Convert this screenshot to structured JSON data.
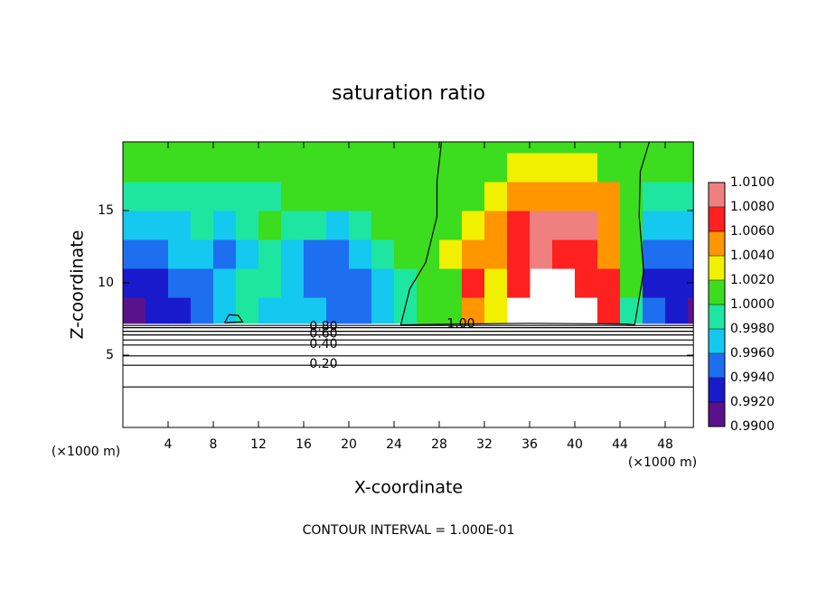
{
  "chart_data": {
    "type": "contour",
    "title": "saturation ratio",
    "x_label": "X-coordinate",
    "y_label": "Z-coordinate",
    "unit_label": "(×1000 m)",
    "footer": "CONTOUR INTERVAL = 1.000E-01",
    "xlim": [
      0,
      50.5
    ],
    "ylim": [
      0,
      19.75
    ],
    "xticks": [
      4,
      8,
      12,
      16,
      20,
      24,
      28,
      32,
      36,
      40,
      44,
      48
    ],
    "yticks": [
      5,
      10,
      15
    ],
    "x_edges": [
      0,
      2,
      4,
      6,
      8,
      10,
      12,
      14,
      16,
      18,
      20,
      22,
      24,
      26,
      28,
      30,
      32,
      34,
      36,
      38,
      40,
      42,
      44,
      46,
      48,
      50,
      50.5
    ],
    "y_edges": [
      7.2,
      9,
      11,
      13,
      15,
      17,
      19,
      19.75
    ],
    "z": [
      [
        0.991,
        0.993,
        0.993,
        0.995,
        0.997,
        0.999,
        0.997,
        0.997,
        0.997,
        0.995,
        0.995,
        0.997,
        0.999,
        1.001,
        1.001,
        1.005,
        1.003,
        null,
        null,
        null,
        null,
        1.007,
        0.999,
        0.995,
        0.993,
        0.991
      ],
      [
        0.993,
        0.993,
        0.995,
        0.995,
        0.997,
        0.999,
        0.999,
        0.997,
        0.995,
        0.995,
        0.995,
        0.997,
        0.999,
        1.001,
        1.001,
        1.007,
        1.003,
        1.007,
        null,
        null,
        1.007,
        1.007,
        1.001,
        0.993,
        0.993,
        0.993
      ],
      [
        0.995,
        0.995,
        0.997,
        0.997,
        0.995,
        0.997,
        0.999,
        0.997,
        0.995,
        0.995,
        0.997,
        0.999,
        1.001,
        1.001,
        1.003,
        1.005,
        1.005,
        1.007,
        1.009,
        1.007,
        1.007,
        1.005,
        1.001,
        0.995,
        0.995,
        0.995
      ],
      [
        0.997,
        0.997,
        0.997,
        0.999,
        0.997,
        0.999,
        1.001,
        0.999,
        0.999,
        0.997,
        0.999,
        1.001,
        1.001,
        1.001,
        1.001,
        1.003,
        1.005,
        1.007,
        1.009,
        1.009,
        1.009,
        1.005,
        1.001,
        0.997,
        0.997,
        0.997
      ],
      [
        0.999,
        0.999,
        0.999,
        0.999,
        0.999,
        0.999,
        0.999,
        1.001,
        1.001,
        1.001,
        1.001,
        1.001,
        1.001,
        1.001,
        1.001,
        1.001,
        1.003,
        1.005,
        1.005,
        1.005,
        1.005,
        1.005,
        1.001,
        0.999,
        0.999,
        0.999
      ],
      [
        1.001,
        1.001,
        1.001,
        1.001,
        1.001,
        1.001,
        1.001,
        1.001,
        1.001,
        1.001,
        1.001,
        1.001,
        1.001,
        1.001,
        1.001,
        1.001,
        1.001,
        1.003,
        1.003,
        1.003,
        1.003,
        1.001,
        1.001,
        1.001,
        1.001,
        1.001
      ],
      [
        1.001,
        1.001,
        1.001,
        1.001,
        1.001,
        1.001,
        1.001,
        1.001,
        1.001,
        1.001,
        1.001,
        1.001,
        1.001,
        1.001,
        1.001,
        1.001,
        1.001,
        1.001,
        1.001,
        1.001,
        1.001,
        1.001,
        1.001,
        1.001,
        1.001,
        1.001
      ]
    ],
    "colors": [
      "#5a128c",
      "#1a1acd",
      "#1e6ef0",
      "#14c8f0",
      "#1ee6a0",
      "#3cdc1e",
      "#f0f000",
      "#ff9600",
      "#ff2020",
      "#f08080"
    ],
    "colorbar_lim": [
      0.99,
      1.01
    ],
    "colorbar_ticks": [
      {
        "value": 0.99,
        "label": "0.9900"
      },
      {
        "value": 0.992,
        "label": "0.9920"
      },
      {
        "value": 0.994,
        "label": "0.9940"
      },
      {
        "value": 0.996,
        "label": "0.9960"
      },
      {
        "value": 0.998,
        "label": "0.9980"
      },
      {
        "value": 1.0,
        "label": "1.0000"
      },
      {
        "value": 1.002,
        "label": "1.0020"
      },
      {
        "value": 1.004,
        "label": "1.0040"
      },
      {
        "value": 1.006,
        "label": "1.0060"
      },
      {
        "value": 1.008,
        "label": "1.0080"
      },
      {
        "value": 1.01,
        "label": "1.0100"
      }
    ],
    "contours": [
      {
        "level": 0.1,
        "x": [
          0,
          50.5
        ],
        "z": [
          2.8,
          2.8
        ]
      },
      {
        "level": 0.2,
        "label": "0.20",
        "x": [
          0,
          50.5
        ],
        "z": [
          4.3,
          4.3
        ]
      },
      {
        "level": 0.3,
        "x": [
          0,
          50.5
        ],
        "z": [
          4.95,
          4.95
        ]
      },
      {
        "level": 0.4,
        "label": "0.40",
        "x": [
          0,
          50.5
        ],
        "z": [
          5.7,
          5.7
        ]
      },
      {
        "level": 0.5,
        "x": [
          0,
          50.5
        ],
        "z": [
          6.05,
          6.05
        ]
      },
      {
        "level": 0.6,
        "label": "0.60",
        "x": [
          0,
          50.5
        ],
        "z": [
          6.4,
          6.4
        ]
      },
      {
        "level": 0.7,
        "x": [
          0,
          50.5
        ],
        "z": [
          6.65,
          6.65
        ]
      },
      {
        "level": 0.8,
        "label": "0.80",
        "x": [
          0,
          50.5
        ],
        "z": [
          6.9,
          6.9
        ]
      },
      {
        "level": 0.9,
        "x": [
          0,
          50.5
        ],
        "z": [
          7.05,
          7.05
        ]
      },
      {
        "level": 1,
        "label": "1.00",
        "x": [
          28.2,
          27.8,
          27.8,
          26.8,
          25.4,
          24.6,
          30,
          36,
          44.5,
          45.3,
          46.1,
          45.7,
          45.8,
          46.6,
          null,
          9.0,
          9.4,
          10.2,
          10.6,
          9.0
        ],
        "z": [
          19.75,
          17,
          14.6,
          11.4,
          9.6,
          7.1,
          7.15,
          7.2,
          7.15,
          7.1,
          10.8,
          14.6,
          17.7,
          19.75,
          null,
          7.25,
          7.8,
          7.75,
          7.3,
          7.25
        ]
      }
    ]
  }
}
